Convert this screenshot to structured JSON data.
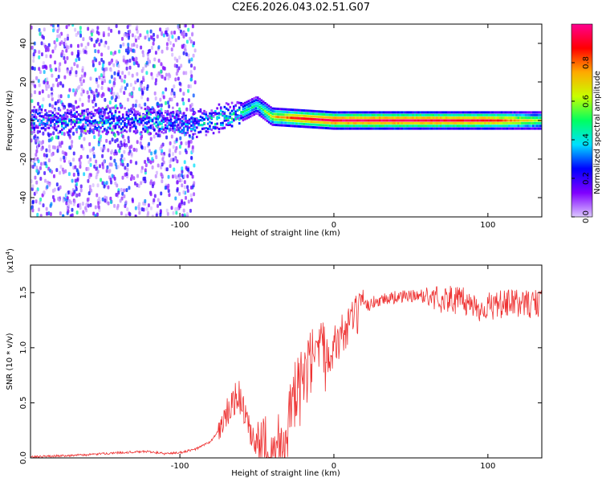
{
  "title": "C2E6.2026.043.02.51.G07",
  "chart_data": [
    {
      "type": "heatmap",
      "xlabel": "Height of straight line (km)",
      "ylabel": "Frequency (Hz)",
      "xlim": [
        -197,
        135
      ],
      "ylim": [
        -50,
        50
      ],
      "xticks": [
        -100,
        0,
        100
      ],
      "yticks": [
        -40,
        -20,
        0,
        20,
        40
      ],
      "colorbar": {
        "label": "Normalized spectral amplitude",
        "range": [
          0,
          1
        ],
        "ticks": [
          "0.0",
          "0.2",
          "0.4",
          "0.6",
          "0.8"
        ],
        "colors": [
          "#dcc8ff",
          "#8000ff",
          "#0000ff",
          "#00e0ff",
          "#00ff60",
          "#c8ff00",
          "#ffaa00",
          "#ff0000",
          "#ff0090"
        ]
      },
      "ridge": [
        {
          "x": -100,
          "freq": -3,
          "amp": 0.35
        },
        {
          "x": -80,
          "freq": 0,
          "amp": 0.45
        },
        {
          "x": -60,
          "freq": 4,
          "amp": 0.5
        },
        {
          "x": -50,
          "freq": 8,
          "amp": 0.45
        },
        {
          "x": -40,
          "freq": 2,
          "amp": 0.7
        },
        {
          "x": -20,
          "freq": 1,
          "amp": 0.9
        },
        {
          "x": 0,
          "freq": 0,
          "amp": 0.95
        },
        {
          "x": 50,
          "freq": 0,
          "amp": 0.95
        },
        {
          "x": 100,
          "freq": 0,
          "amp": 0.9
        },
        {
          "x": 135,
          "freq": 0,
          "amp": 0.6
        }
      ]
    },
    {
      "type": "line",
      "xlabel": "Height of straight line (km)",
      "ylabel": "SNR (10 * v/v)",
      "yscale_label": "(x10",
      "yscale_exp": "4",
      "xlim": [
        -197,
        135
      ],
      "ylim": [
        0,
        1.75
      ],
      "xticks": [
        -100,
        0,
        100
      ],
      "yticks": [
        "0.0",
        "0.5",
        "1.0",
        "1.5"
      ],
      "color": "#ee3333",
      "series": [
        {
          "name": "SNR",
          "x": [
            -197,
            -180,
            -160,
            -140,
            -120,
            -110,
            -100,
            -90,
            -80,
            -75,
            -70,
            -65,
            -62,
            -58,
            -55,
            -50,
            -45,
            -40,
            -35,
            -30,
            -25,
            -20,
            -18,
            -15,
            -10,
            -5,
            0,
            5,
            10,
            15,
            20,
            25,
            30,
            40,
            50,
            60,
            70,
            80,
            85,
            90,
            95,
            100,
            110,
            120,
            135
          ],
          "values": [
            0.01,
            0.02,
            0.03,
            0.05,
            0.06,
            0.04,
            0.05,
            0.08,
            0.15,
            0.25,
            0.4,
            0.55,
            0.6,
            0.45,
            0.25,
            0.1,
            0.12,
            0.15,
            0.2,
            0.35,
            0.6,
            0.75,
            0.8,
            0.9,
            0.95,
            1.0,
            1.05,
            1.15,
            1.25,
            1.33,
            1.38,
            1.42,
            1.45,
            1.47,
            1.48,
            1.48,
            1.47,
            1.46,
            1.44,
            1.42,
            1.38,
            1.4,
            1.42,
            1.43,
            1.42
          ]
        }
      ]
    }
  ]
}
